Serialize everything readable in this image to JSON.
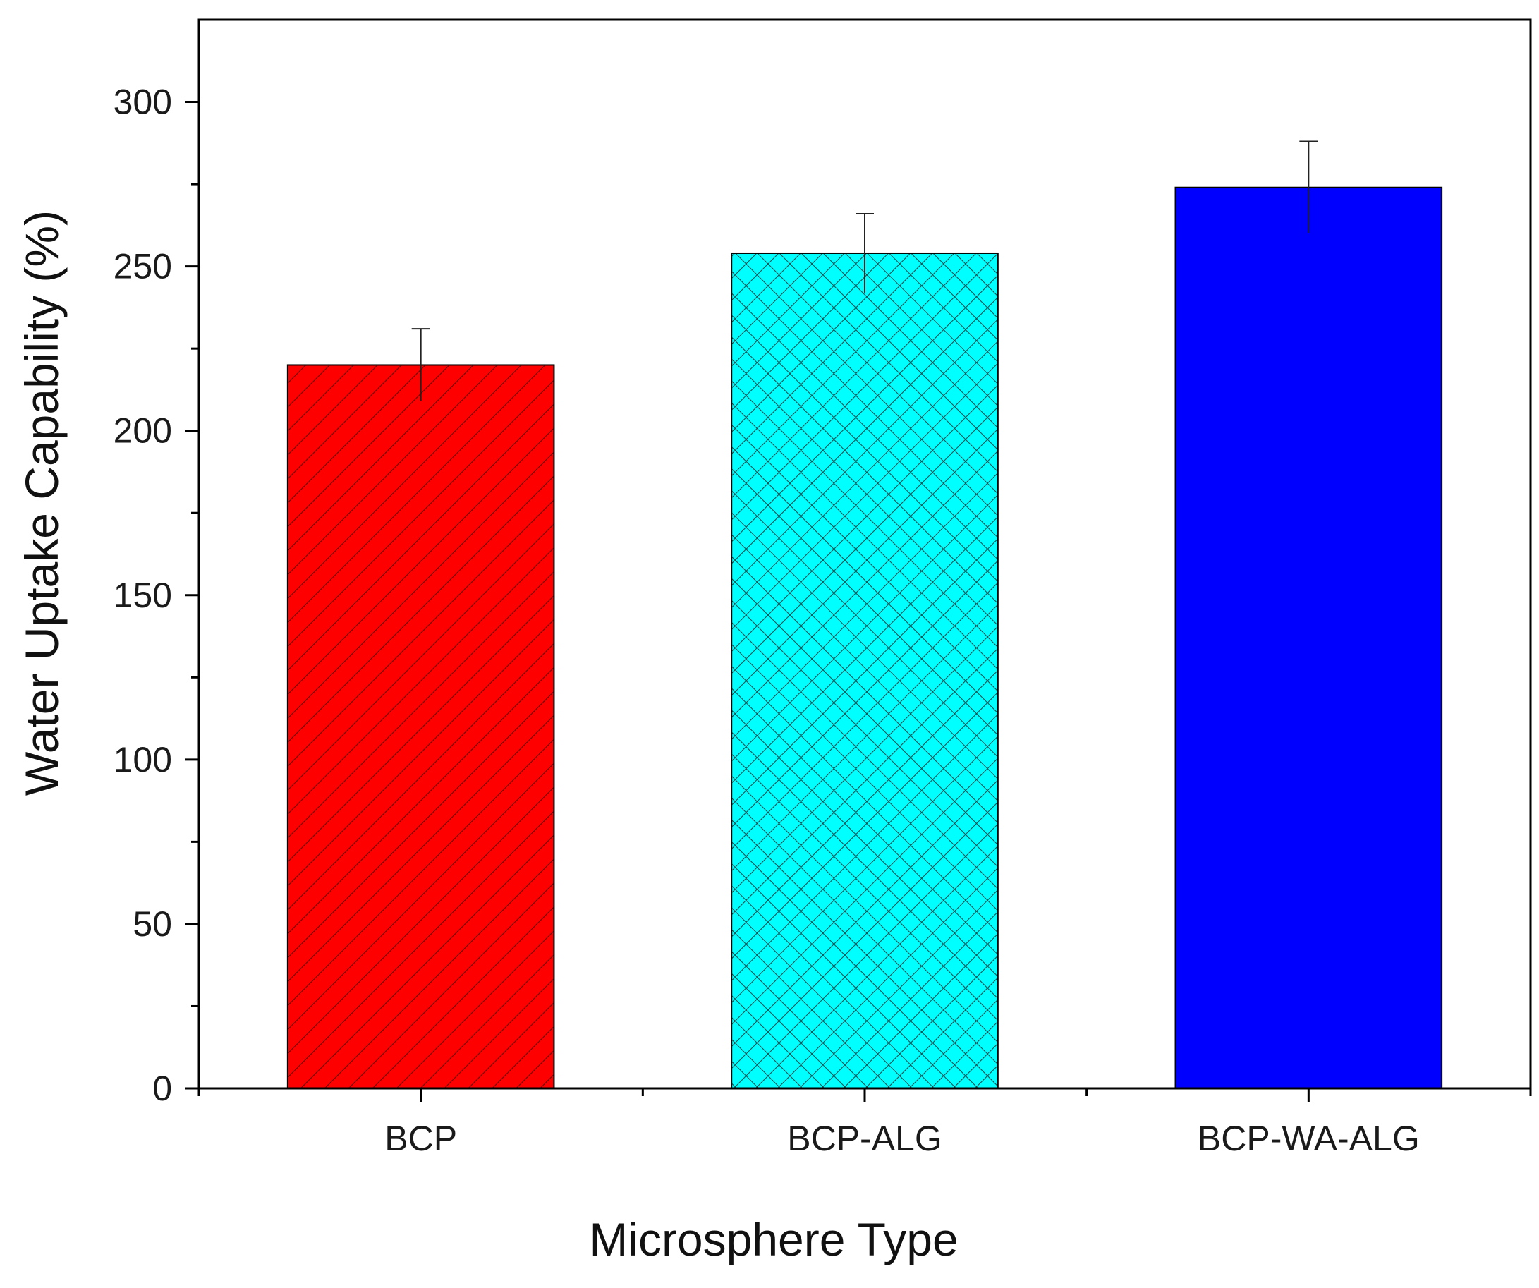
{
  "chart_data": {
    "type": "bar",
    "title": "",
    "xlabel": "Microsphere Type",
    "ylabel": "Water Uptake Capability (%)",
    "categories": [
      "BCP",
      "BCP-ALG",
      "BCP-WA-ALG"
    ],
    "values": [
      220,
      254,
      274
    ],
    "errors": [
      11,
      12,
      14
    ],
    "fills": [
      "#ff0000",
      "#00ffff",
      "#0000ff"
    ],
    "patterns": [
      "diagonal-hatch",
      "cross-hatch",
      "solid"
    ],
    "ylim": [
      0,
      325
    ],
    "yticks": [
      0,
      50,
      100,
      150,
      200,
      250,
      300
    ],
    "ytick_labels": [
      "0",
      "50",
      "100",
      "150",
      "200",
      "250",
      "300"
    ],
    "grid": false,
    "legend": "none"
  }
}
